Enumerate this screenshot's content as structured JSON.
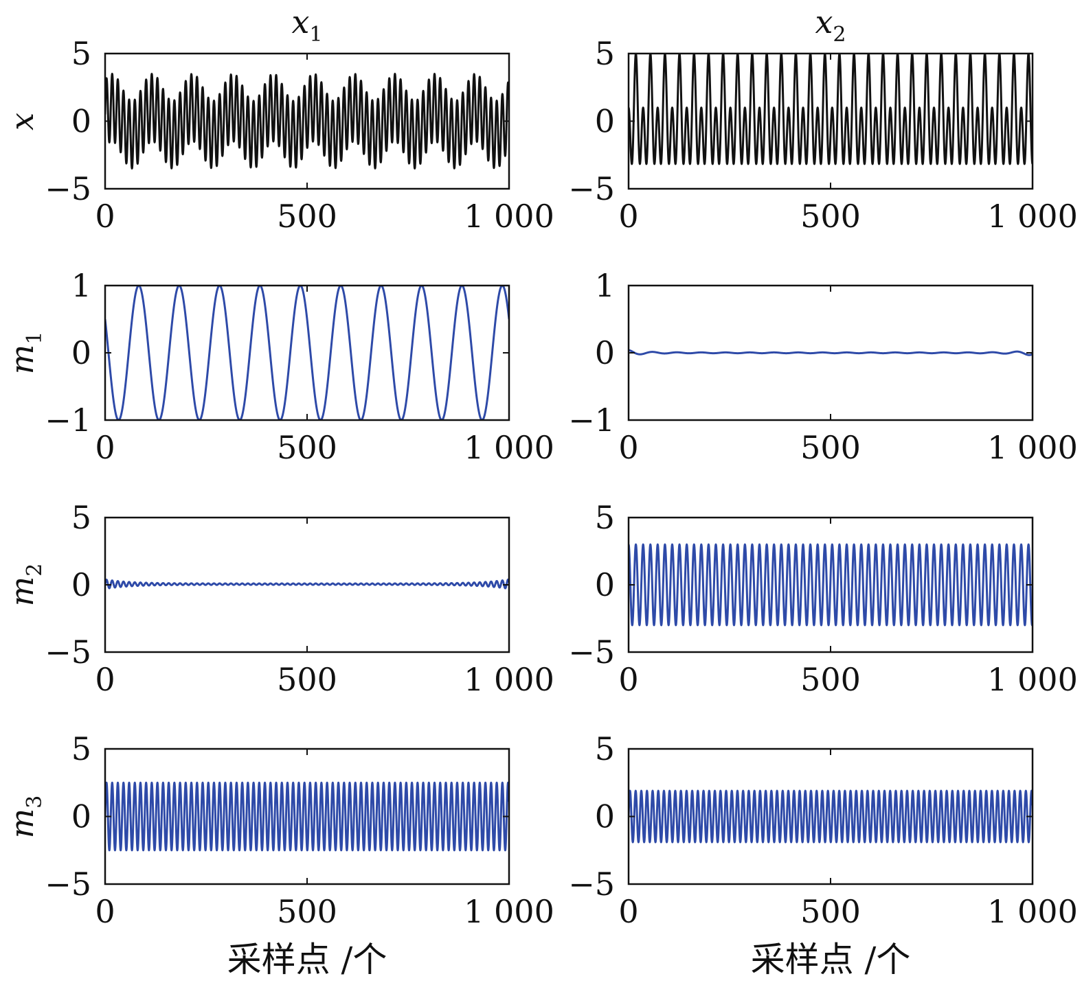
{
  "figure": {
    "column_titles": [
      {
        "base": "x",
        "sub": "1"
      },
      {
        "base": "x",
        "sub": "2"
      }
    ],
    "row_labels": [
      {
        "base": "x",
        "sub": ""
      },
      {
        "base": "m",
        "sub": "1"
      },
      {
        "base": "m",
        "sub": "2"
      },
      {
        "base": "m",
        "sub": "3"
      }
    ],
    "xlabel": "采样点 /个",
    "colors": {
      "raw": "#111111",
      "component": "#2e4aa8",
      "axis": "#111111"
    }
  },
  "chart_data": [
    {
      "type": "line",
      "row": 0,
      "col": 0,
      "ylabel": "x",
      "title": "x1",
      "xlim": [
        0,
        1000
      ],
      "ylim": [
        -5,
        5
      ],
      "xticks": [
        0,
        500,
        1000
      ],
      "xtick_labels": [
        "0",
        "500",
        "1 000"
      ],
      "yticks": [
        -5,
        0,
        5
      ],
      "ytick_labels": [
        "−5",
        "0",
        "5"
      ],
      "color": "#111111",
      "signal": {
        "components": [
          {
            "amp": 1,
            "period": 100,
            "phase": 0.5236
          },
          {
            "amp": 2.5,
            "period": 14,
            "phase": 0
          }
        ]
      }
    },
    {
      "type": "line",
      "row": 0,
      "col": 1,
      "ylabel": "",
      "title": "x2",
      "xlim": [
        0,
        1000
      ],
      "ylim": [
        -5,
        5
      ],
      "xticks": [
        0,
        500,
        1000
      ],
      "xtick_labels": [
        "0",
        "500",
        "1 000"
      ],
      "yticks": [
        -5,
        0,
        5
      ],
      "ytick_labels": [
        "−5",
        "0",
        "5"
      ],
      "color": "#111111",
      "signal": {
        "components": [
          {
            "amp": 3,
            "period": 18,
            "phase": 1.5708
          },
          {
            "amp": 2,
            "period": 36,
            "phase": -1.5708
          }
        ],
        "clip": [
          -4,
          5
        ]
      }
    },
    {
      "type": "line",
      "row": 1,
      "col": 0,
      "ylabel": "m1",
      "title": "",
      "xlim": [
        0,
        1000
      ],
      "ylim": [
        -1,
        1
      ],
      "xticks": [
        0,
        500,
        1000
      ],
      "xtick_labels": [
        "0",
        "500",
        "1 000"
      ],
      "yticks": [
        -1,
        0,
        1
      ],
      "ytick_labels": [
        "−1",
        "0",
        "1"
      ],
      "color": "#2e4aa8",
      "signal": {
        "components": [
          {
            "amp": 1,
            "period": 100,
            "phase": 2.618
          }
        ]
      }
    },
    {
      "type": "line",
      "row": 1,
      "col": 1,
      "ylabel": "",
      "title": "",
      "xlim": [
        0,
        1000
      ],
      "ylim": [
        -1,
        1
      ],
      "xticks": [
        0,
        500,
        1000
      ],
      "xtick_labels": [
        "0",
        "500",
        "1 000"
      ],
      "yticks": [
        -1,
        0,
        1
      ],
      "ytick_labels": [
        "−1",
        "0",
        "1"
      ],
      "color": "#2e4aa8",
      "signal": {
        "components": [
          {
            "amp": 0.04,
            "period": 60,
            "phase": 1.5708
          }
        ],
        "edge_decay": 40,
        "baseline": 0
      }
    },
    {
      "type": "line",
      "row": 2,
      "col": 0,
      "ylabel": "m2",
      "title": "",
      "xlim": [
        0,
        1000
      ],
      "ylim": [
        -5,
        5
      ],
      "xticks": [
        0,
        500,
        1000
      ],
      "xtick_labels": [
        "0",
        "500",
        "1 000"
      ],
      "yticks": [
        -5,
        0,
        5
      ],
      "ytick_labels": [
        "−5",
        "0",
        "5"
      ],
      "color": "#2e4aa8",
      "signal": {
        "components": [
          {
            "amp": 0.35,
            "period": 14,
            "phase": 0
          }
        ],
        "edge_decay": 60,
        "baseline": 0.05
      }
    },
    {
      "type": "line",
      "row": 2,
      "col": 1,
      "ylabel": "",
      "title": "",
      "xlim": [
        0,
        1000
      ],
      "ylim": [
        -5,
        5
      ],
      "xticks": [
        0,
        500,
        1000
      ],
      "xtick_labels": [
        "0",
        "500",
        "1 000"
      ],
      "yticks": [
        -5,
        0,
        5
      ],
      "ytick_labels": [
        "−5",
        "0",
        "5"
      ],
      "color": "#2e4aa8",
      "signal": {
        "components": [
          {
            "amp": 3,
            "period": 18,
            "phase": 1.5708
          }
        ]
      }
    },
    {
      "type": "line",
      "row": 3,
      "col": 0,
      "ylabel": "m3",
      "title": "",
      "xlim": [
        0,
        1000
      ],
      "ylim": [
        -5,
        5
      ],
      "xticks": [
        0,
        500,
        1000
      ],
      "xtick_labels": [
        "0",
        "500",
        "1 000"
      ],
      "yticks": [
        -5,
        0,
        5
      ],
      "ytick_labels": [
        "−5",
        "0",
        "5"
      ],
      "color": "#2e4aa8",
      "signal": {
        "components": [
          {
            "amp": 2.5,
            "period": 14,
            "phase": 0
          }
        ]
      }
    },
    {
      "type": "line",
      "row": 3,
      "col": 1,
      "ylabel": "",
      "title": "",
      "xlim": [
        0,
        1000
      ],
      "ylim": [
        -5,
        5
      ],
      "xticks": [
        0,
        500,
        1000
      ],
      "xtick_labels": [
        "0",
        "500",
        "1 000"
      ],
      "yticks": [
        -5,
        0,
        5
      ],
      "ytick_labels": [
        "−5",
        "0",
        "5"
      ],
      "color": "#2e4aa8",
      "signal": {
        "components": [
          {
            "amp": 1.9,
            "period": 14,
            "phase": 0
          }
        ]
      }
    }
  ]
}
